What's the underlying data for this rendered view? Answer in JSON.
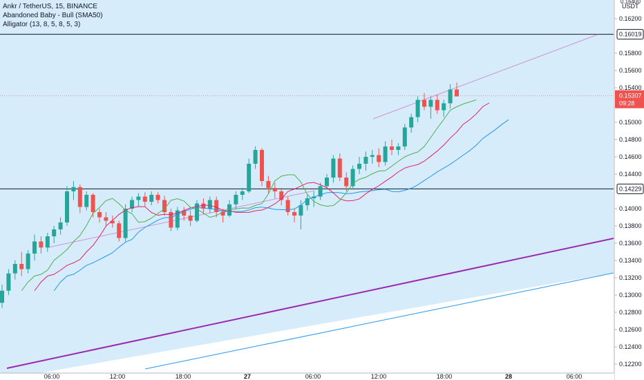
{
  "legend": {
    "symbol": "Ankr / TetherUS, 15, BINANCE",
    "study1": "Abandoned Baby - Bull (SMA50)",
    "study2": "Alligator (13, 8, 5, 8, 5, 3)"
  },
  "colors": {
    "background_band": "#d7ecfa",
    "up_candle": "#26a69a",
    "down_candle": "#ef5350",
    "jaw": "#2196f3",
    "teeth": "#e91e63",
    "lips": "#4caf50",
    "channel_purple": "#9c27b0",
    "channel_blue": "#2196f3",
    "trendline": "#ce93d8",
    "price_label": "#ef5350",
    "horizontal_line": "#131722"
  },
  "price_axis": {
    "currency": "USDT",
    "top_partial": "0.16400",
    "ticks": [
      "0.16200",
      "0.15800",
      "0.15600",
      "0.15400",
      "0.15000",
      "0.14800",
      "0.14600",
      "0.14400",
      "0.14000",
      "0.13800",
      "0.13600",
      "0.13400",
      "0.13200",
      "0.13000",
      "0.12800",
      "0.12600",
      "0.12400",
      "0.12200"
    ],
    "hline_upper": "0.16019",
    "hline_lower": "0.14229",
    "last_price": "0.15307",
    "countdown": "09:28"
  },
  "time_axis": {
    "ticks": [
      "06:00",
      "12:00",
      "18:00",
      "27",
      "06:00",
      "12:00",
      "18:00",
      "28",
      "06:00"
    ]
  },
  "chart_data": {
    "type": "candlestick",
    "interval": "15",
    "ylim": [
      0.1215,
      0.165
    ],
    "bar_count": 71,
    "hlines": [
      0.16019,
      0.14229
    ],
    "last_price": 0.15307,
    "candles": [
      {
        "o": 0.1291,
        "h": 0.1312,
        "l": 0.1285,
        "c": 0.1305
      },
      {
        "o": 0.1305,
        "h": 0.133,
        "l": 0.13,
        "c": 0.1325
      },
      {
        "o": 0.1325,
        "h": 0.134,
        "l": 0.1318,
        "c": 0.1336
      },
      {
        "o": 0.1336,
        "h": 0.135,
        "l": 0.1322,
        "c": 0.133
      },
      {
        "o": 0.133,
        "h": 0.1352,
        "l": 0.1325,
        "c": 0.1348
      },
      {
        "o": 0.1348,
        "h": 0.137,
        "l": 0.134,
        "c": 0.1362
      },
      {
        "o": 0.1362,
        "h": 0.1368,
        "l": 0.1348,
        "c": 0.1355
      },
      {
        "o": 0.1355,
        "h": 0.1372,
        "l": 0.135,
        "c": 0.1368
      },
      {
        "o": 0.1368,
        "h": 0.138,
        "l": 0.136,
        "c": 0.1376
      },
      {
        "o": 0.1376,
        "h": 0.139,
        "l": 0.137,
        "c": 0.1384
      },
      {
        "o": 0.1384,
        "h": 0.1426,
        "l": 0.138,
        "c": 0.142
      },
      {
        "o": 0.142,
        "h": 0.1432,
        "l": 0.141,
        "c": 0.1425
      },
      {
        "o": 0.1425,
        "h": 0.1428,
        "l": 0.1395,
        "c": 0.1402
      },
      {
        "o": 0.1402,
        "h": 0.142,
        "l": 0.1398,
        "c": 0.1416
      },
      {
        "o": 0.1416,
        "h": 0.1418,
        "l": 0.139,
        "c": 0.1396
      },
      {
        "o": 0.1396,
        "h": 0.14,
        "l": 0.1384,
        "c": 0.139
      },
      {
        "o": 0.139,
        "h": 0.1396,
        "l": 0.138,
        "c": 0.1386
      },
      {
        "o": 0.1386,
        "h": 0.1392,
        "l": 0.1378,
        "c": 0.1383
      },
      {
        "o": 0.1383,
        "h": 0.1386,
        "l": 0.1362,
        "c": 0.1366
      },
      {
        "o": 0.1366,
        "h": 0.1405,
        "l": 0.1362,
        "c": 0.14
      },
      {
        "o": 0.14,
        "h": 0.1414,
        "l": 0.1396,
        "c": 0.141
      },
      {
        "o": 0.141,
        "h": 0.1418,
        "l": 0.1402,
        "c": 0.1414
      },
      {
        "o": 0.1414,
        "h": 0.1419,
        "l": 0.1402,
        "c": 0.1408
      },
      {
        "o": 0.1408,
        "h": 0.142,
        "l": 0.1404,
        "c": 0.1416
      },
      {
        "o": 0.1416,
        "h": 0.1419,
        "l": 0.1406,
        "c": 0.141
      },
      {
        "o": 0.141,
        "h": 0.1415,
        "l": 0.1392,
        "c": 0.1396
      },
      {
        "o": 0.1396,
        "h": 0.14,
        "l": 0.1374,
        "c": 0.1378
      },
      {
        "o": 0.1378,
        "h": 0.1402,
        "l": 0.1375,
        "c": 0.1398
      },
      {
        "o": 0.1398,
        "h": 0.1402,
        "l": 0.1386,
        "c": 0.1392
      },
      {
        "o": 0.1392,
        "h": 0.1398,
        "l": 0.138,
        "c": 0.1386
      },
      {
        "o": 0.1386,
        "h": 0.141,
        "l": 0.1384,
        "c": 0.1406
      },
      {
        "o": 0.1406,
        "h": 0.1412,
        "l": 0.1394,
        "c": 0.14
      },
      {
        "o": 0.14,
        "h": 0.1414,
        "l": 0.1395,
        "c": 0.141
      },
      {
        "o": 0.141,
        "h": 0.1414,
        "l": 0.139,
        "c": 0.1396
      },
      {
        "o": 0.1396,
        "h": 0.14,
        "l": 0.1384,
        "c": 0.1392
      },
      {
        "o": 0.1392,
        "h": 0.141,
        "l": 0.139,
        "c": 0.1405
      },
      {
        "o": 0.1405,
        "h": 0.142,
        "l": 0.14,
        "c": 0.1416
      },
      {
        "o": 0.1416,
        "h": 0.1424,
        "l": 0.141,
        "c": 0.142
      },
      {
        "o": 0.142,
        "h": 0.1458,
        "l": 0.1418,
        "c": 0.1452
      },
      {
        "o": 0.1452,
        "h": 0.1472,
        "l": 0.1446,
        "c": 0.1468
      },
      {
        "o": 0.1468,
        "h": 0.147,
        "l": 0.1426,
        "c": 0.1432
      },
      {
        "o": 0.1432,
        "h": 0.1438,
        "l": 0.1418,
        "c": 0.1424
      },
      {
        "o": 0.1424,
        "h": 0.143,
        "l": 0.1412,
        "c": 0.142
      },
      {
        "o": 0.142,
        "h": 0.1424,
        "l": 0.1404,
        "c": 0.141
      },
      {
        "o": 0.141,
        "h": 0.1414,
        "l": 0.1392,
        "c": 0.1396
      },
      {
        "o": 0.1396,
        "h": 0.14,
        "l": 0.1384,
        "c": 0.1392
      },
      {
        "o": 0.1392,
        "h": 0.141,
        "l": 0.1376,
        "c": 0.1404
      },
      {
        "o": 0.1404,
        "h": 0.1416,
        "l": 0.1398,
        "c": 0.1412
      },
      {
        "o": 0.1412,
        "h": 0.142,
        "l": 0.1402,
        "c": 0.1414
      },
      {
        "o": 0.1414,
        "h": 0.143,
        "l": 0.141,
        "c": 0.1426
      },
      {
        "o": 0.1426,
        "h": 0.144,
        "l": 0.1422,
        "c": 0.1436
      },
      {
        "o": 0.1436,
        "h": 0.1462,
        "l": 0.143,
        "c": 0.1458
      },
      {
        "o": 0.1458,
        "h": 0.1464,
        "l": 0.1432,
        "c": 0.1436
      },
      {
        "o": 0.1436,
        "h": 0.1442,
        "l": 0.142,
        "c": 0.1426
      },
      {
        "o": 0.1426,
        "h": 0.145,
        "l": 0.1424,
        "c": 0.1446
      },
      {
        "o": 0.1446,
        "h": 0.146,
        "l": 0.144,
        "c": 0.1452
      },
      {
        "o": 0.1452,
        "h": 0.1466,
        "l": 0.1444,
        "c": 0.146
      },
      {
        "o": 0.146,
        "h": 0.1468,
        "l": 0.1452,
        "c": 0.1462
      },
      {
        "o": 0.1462,
        "h": 0.147,
        "l": 0.1448,
        "c": 0.1454
      },
      {
        "o": 0.1454,
        "h": 0.1478,
        "l": 0.145,
        "c": 0.1472
      },
      {
        "o": 0.1472,
        "h": 0.148,
        "l": 0.1462,
        "c": 0.1468
      },
      {
        "o": 0.1468,
        "h": 0.1476,
        "l": 0.1462,
        "c": 0.1472
      },
      {
        "o": 0.1472,
        "h": 0.1498,
        "l": 0.1468,
        "c": 0.1494
      },
      {
        "o": 0.1494,
        "h": 0.151,
        "l": 0.1488,
        "c": 0.1506
      },
      {
        "o": 0.1506,
        "h": 0.153,
        "l": 0.15,
        "c": 0.1526
      },
      {
        "o": 0.1526,
        "h": 0.1534,
        "l": 0.1514,
        "c": 0.1518
      },
      {
        "o": 0.1518,
        "h": 0.153,
        "l": 0.1504,
        "c": 0.1526
      },
      {
        "o": 0.1526,
        "h": 0.1532,
        "l": 0.151,
        "c": 0.1514
      },
      {
        "o": 0.1514,
        "h": 0.1526,
        "l": 0.1506,
        "c": 0.1522
      },
      {
        "o": 0.1522,
        "h": 0.1544,
        "l": 0.1516,
        "c": 0.1538
      },
      {
        "o": 0.1538,
        "h": 0.1546,
        "l": 0.1532,
        "c": 0.153
      }
    ]
  }
}
